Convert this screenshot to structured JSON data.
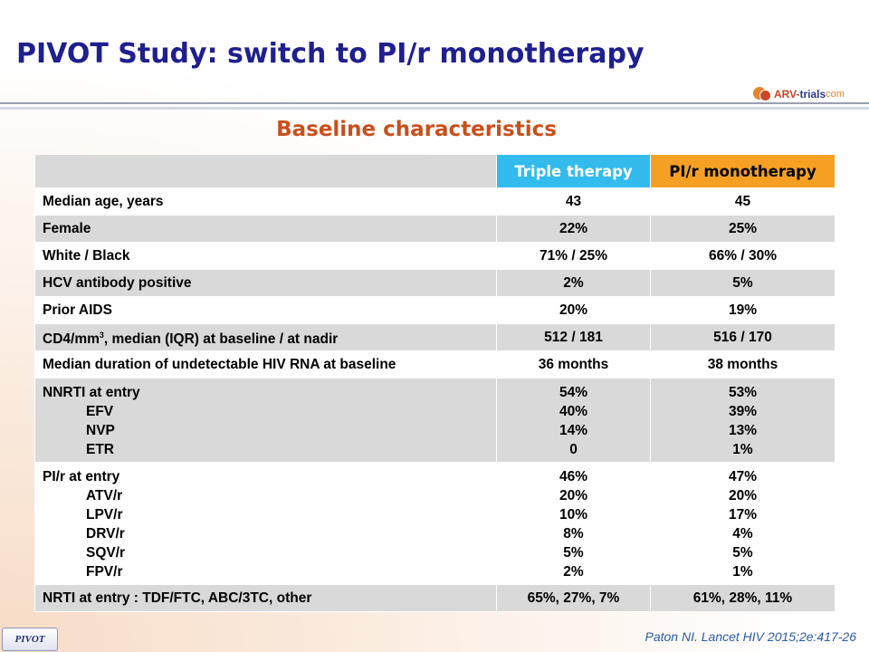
{
  "slide": {
    "title": "PIVOT Study: switch to PI/r monotherapy",
    "subtitle": "Baseline characteristics",
    "logo": {
      "part1": "ARV-",
      "part2": "trials",
      "part3": "com"
    },
    "citation": "Paton NI. Lancet HIV 2015;2e:417-26",
    "badge": "PIVOT"
  },
  "table": {
    "headers": [
      "",
      "Triple therapy",
      "PI/r monotherapy"
    ],
    "header_colors": {
      "triple": "#33bbee",
      "mono": "#f5a022"
    },
    "rows": [
      {
        "label": "Median age, years",
        "triple": "43",
        "mono": "45"
      },
      {
        "label": "Female",
        "triple": "22%",
        "mono": "25%"
      },
      {
        "label": "White / Black",
        "triple": "71% / 25%",
        "mono": "66% / 30%"
      },
      {
        "label": "HCV antibody positive",
        "triple": "2%",
        "mono": "5%"
      },
      {
        "label": "Prior AIDS",
        "triple": "20%",
        "mono": "19%"
      },
      {
        "label_pre": "CD4/mm",
        "label_sup": "3",
        "label_post": ", median (IQR) at baseline / at nadir",
        "triple": "512 / 181",
        "mono": "516 / 170"
      },
      {
        "label": "Median duration of undetectable HIV RNA at baseline",
        "triple": "36 months",
        "mono": "38 months"
      },
      {
        "label": "NNRTI at entry",
        "triple": "54%",
        "mono": "53%",
        "sub": [
          {
            "label": "EFV",
            "triple": "40%",
            "mono": "39%"
          },
          {
            "label": "NVP",
            "triple": "14%",
            "mono": "13%"
          },
          {
            "label": "ETR",
            "triple": "0",
            "mono": "1%"
          }
        ]
      },
      {
        "label": "PI/r at entry",
        "triple": "46%",
        "mono": "47%",
        "sub": [
          {
            "label": "ATV/r",
            "triple": "20%",
            "mono": "20%"
          },
          {
            "label": "LPV/r",
            "triple": "10%",
            "mono": "17%"
          },
          {
            "label": "DRV/r",
            "triple": "8%",
            "mono": "4%"
          },
          {
            "label": "SQV/r",
            "triple": "5%",
            "mono": "5%"
          },
          {
            "label": "FPV/r",
            "triple": "2%",
            "mono": "1%"
          }
        ]
      },
      {
        "label": "NRTI at entry : TDF/FTC, ABC/3TC, other",
        "triple": "65%, 27%, 7%",
        "mono": "61%, 28%, 11%"
      }
    ]
  }
}
